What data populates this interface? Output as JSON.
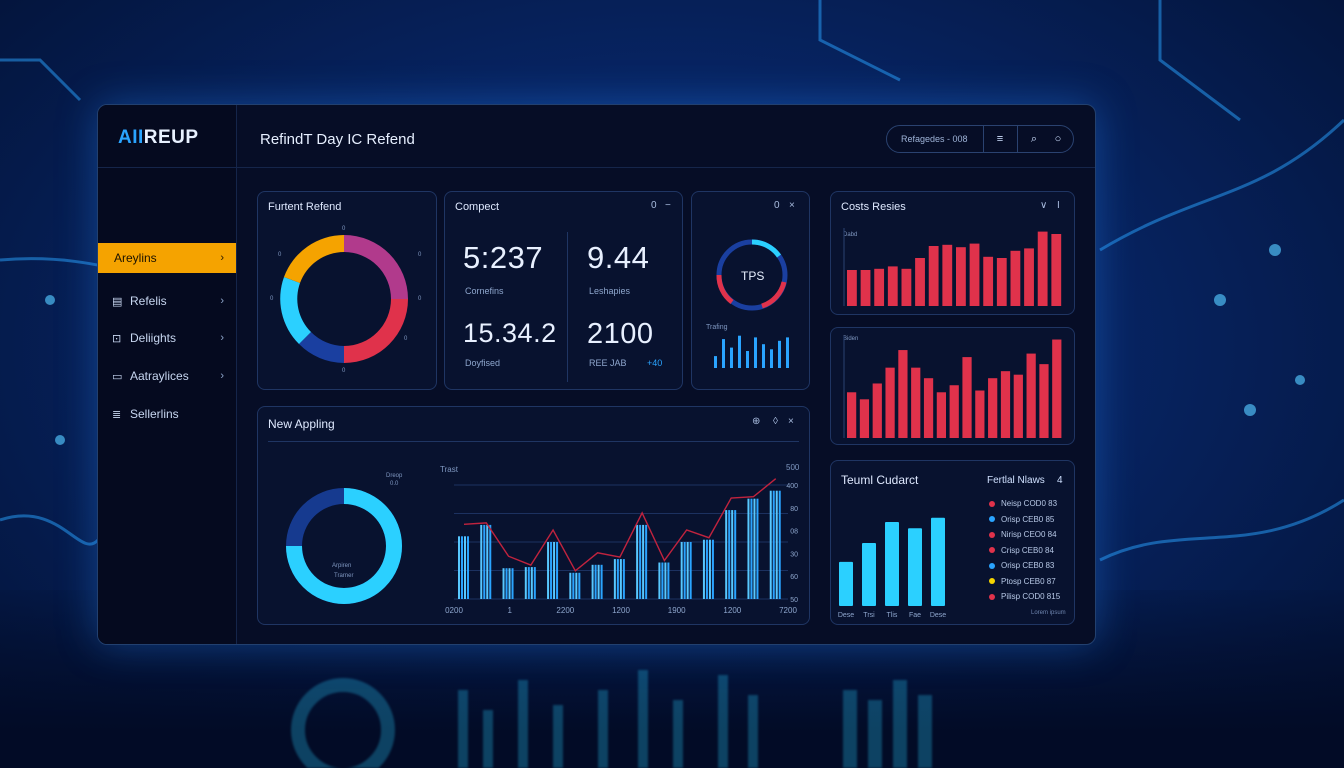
{
  "app": {
    "logo_a": "AII",
    "logo_b": "REUP",
    "header_title": "RefindT Day IC Refend"
  },
  "search": {
    "placeholder": "Refagedes - 008",
    "menu_icon": "menu-icon",
    "search_icon": "search-icon",
    "circle_icon": "circle-icon"
  },
  "sidebar": {
    "items": [
      {
        "label": "Areylins",
        "icon": "grid-icon",
        "active": true
      },
      {
        "label": "Refelis",
        "icon": "table-icon",
        "active": false
      },
      {
        "label": "Deliights",
        "icon": "lock-icon",
        "active": false
      },
      {
        "label": "Aatraylices",
        "icon": "clipboard-icon",
        "active": false
      },
      {
        "label": "Sellerlins",
        "icon": "list-icon",
        "active": false
      }
    ]
  },
  "cards": {
    "donut1": {
      "title": "Furtent Refend",
      "tick_labels": [
        "0",
        "0",
        "0",
        "0",
        "0",
        "0",
        "0",
        "0"
      ]
    },
    "compact": {
      "title": "Compect",
      "ctl1": "0",
      "ctl2": "−",
      "stats": [
        {
          "value": "5:237",
          "label": "Cornefins"
        },
        {
          "value": "9.44",
          "label": "Leshapies"
        },
        {
          "value": "15.34.2",
          "label": "Doyfised"
        },
        {
          "value": "2100",
          "label": "REE JAB"
        }
      ],
      "trend_label": "+40"
    },
    "tps": {
      "gauge_label": "TPS",
      "ctl1": "0",
      "ctl2": "×",
      "sub_label": "Trafing",
      "bar_values": [
        0.35,
        0.85,
        0.6,
        0.95,
        0.5,
        0.9,
        0.7,
        0.55,
        0.8,
        0.9
      ]
    },
    "costs": {
      "title": "Costs Resies",
      "ctl1": "∨",
      "ctl2": "I",
      "axis_label": "Dabd",
      "colors": {
        "bar": "#e0324b"
      },
      "values": [
        3,
        3,
        3.1,
        3.3,
        3.1,
        4,
        5,
        5.1,
        4.9,
        5.2,
        4.1,
        4,
        4.6,
        4.8,
        6.2,
        6
      ]
    },
    "redbars2": {
      "axis_label": "Biden",
      "values": [
        2.6,
        2.2,
        3.1,
        4,
        5,
        4,
        3.4,
        2.6,
        3,
        4.6,
        2.7,
        3.4,
        3.8,
        3.6,
        4.8,
        4.2,
        5.6
      ]
    },
    "newapp": {
      "title": "New Appling",
      "ctl1": "⊕",
      "ctl2": "◊",
      "ctl3": "×",
      "donut_center1": "Arpiren",
      "donut_center2": "Trarner",
      "corner_label1": "Dreop",
      "corner_label2": "0.0",
      "chart_label": "Trast",
      "right_top": "500",
      "x_labels": [
        "0200",
        "1",
        "2200",
        "1200",
        "1900",
        "1200",
        "7200"
      ],
      "y_labels": [
        "400",
        "80",
        "08",
        "30",
        "60",
        "50"
      ]
    },
    "team": {
      "title": "Teuml Cudarct",
      "legend_title": "Fertlal Nlaws",
      "legend_count": "4",
      "bar_values": [
        0.42,
        0.6,
        0.8,
        0.74,
        0.84
      ],
      "x_labels": [
        "Dese",
        "Trsi",
        "Tlis",
        "Fae",
        "Dese"
      ],
      "legend": [
        {
          "label": "Neisp COD0 83",
          "color": "#e0324b"
        },
        {
          "label": "Orisp CEB0 85",
          "color": "#2aa4ff"
        },
        {
          "label": "Nirisp CEO0 84",
          "color": "#e0324b"
        },
        {
          "label": "Crisp CEB0 84",
          "color": "#e0324b"
        },
        {
          "label": "Orisp CEB0 83",
          "color": "#2aa4ff"
        },
        {
          "label": "Ptosp CEB0 87",
          "color": "#f5d400"
        },
        {
          "label": "Pilisp COD0 815",
          "color": "#e0324b"
        }
      ],
      "legend_footer": "Lorem ipsum"
    }
  },
  "colors": {
    "accent": "#f5a300",
    "cyan": "#2bd0ff",
    "red": "#e0324b",
    "navy": "#1a3fa0",
    "magenta": "#b13a8c"
  }
}
